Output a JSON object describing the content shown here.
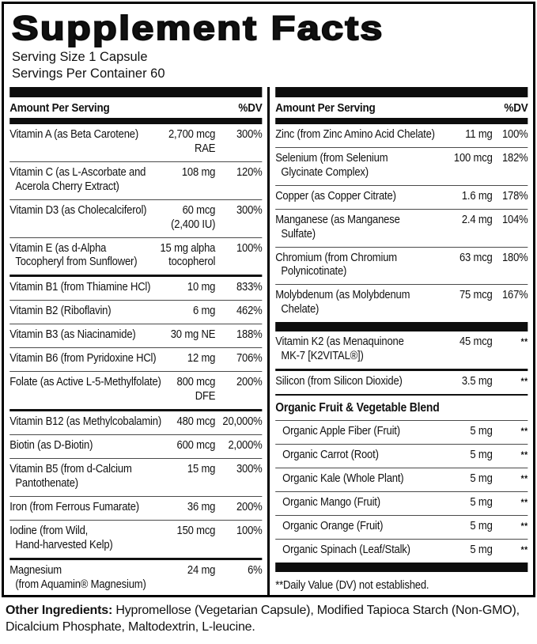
{
  "title": "Supplement Facts",
  "serving": {
    "size": "Serving Size 1 Capsule",
    "per_container": "Servings Per Container 60"
  },
  "table": {
    "header": {
      "amount": "Amount Per Serving",
      "dv": "%DV"
    },
    "left": [
      {
        "type": "row",
        "sep": "none",
        "name": "Vitamin A (as Beta Carotene)",
        "amount": "2,700 mcg\nRAE",
        "dv": "300%"
      },
      {
        "type": "row",
        "sep": "thin",
        "name": "Vitamin C (as L-Ascorbate and\nAcerola Cherry Extract)",
        "amount": "108 mg",
        "dv": "120%"
      },
      {
        "type": "row",
        "sep": "thin",
        "name": "Vitamin D3 (as Cholecalciferol)",
        "amount": "60 mcg\n(2,400 IU)",
        "dv": "300%"
      },
      {
        "type": "row",
        "sep": "thin",
        "name": "Vitamin E (as d-Alpha\nTocopheryl from Sunflower)",
        "amount": "15 mg alpha\ntocopherol",
        "dv": "100%"
      },
      {
        "type": "row",
        "sep": "medium",
        "name": "Vitamin B1 (from Thiamine HCl)",
        "amount": "10 mg",
        "dv": "833%"
      },
      {
        "type": "row",
        "sep": "thin",
        "name": "Vitamin B2 (Riboflavin)",
        "amount": "6 mg",
        "dv": "462%"
      },
      {
        "type": "row",
        "sep": "thin",
        "name": "Vitamin B3 (as Niacinamide)",
        "amount": "30 mg NE",
        "dv": "188%"
      },
      {
        "type": "row",
        "sep": "thin",
        "name": "Vitamin B6 (from Pyridoxine HCl)",
        "amount": "12 mg",
        "dv": "706%"
      },
      {
        "type": "row",
        "sep": "thin",
        "name": "Folate (as Active L-5-Methylfolate)",
        "amount": "800 mcg\nDFE",
        "dv": "200%"
      },
      {
        "type": "row",
        "sep": "medium",
        "name": "Vitamin B12 (as Methylcobalamin)",
        "amount": "480 mcg",
        "dv": "20,000%"
      },
      {
        "type": "row",
        "sep": "thin",
        "name": "Biotin (as D-Biotin)",
        "amount": "600 mcg",
        "dv": "2,000%"
      },
      {
        "type": "row",
        "sep": "thin",
        "name": "Vitamin B5 (from d-Calcium\nPantothenate)",
        "amount": "15 mg",
        "dv": "300%"
      },
      {
        "type": "row",
        "sep": "thin",
        "name": "Iron (from Ferrous Fumarate)",
        "amount": "36 mg",
        "dv": "200%"
      },
      {
        "type": "row",
        "sep": "thin",
        "name": "Iodine (from Wild,\nHand-harvested Kelp)",
        "amount": "150 mcg",
        "dv": "100%"
      },
      {
        "type": "row",
        "sep": "medium",
        "name": "Magnesium\n(from Aquamin® Magnesium)",
        "amount": "24 mg",
        "dv": "6%"
      }
    ],
    "right": [
      {
        "type": "row",
        "sep": "none",
        "name": "Zinc (from Zinc Amino Acid Chelate)",
        "amount": "11 mg",
        "dv": "100%"
      },
      {
        "type": "row",
        "sep": "thin",
        "name": "Selenium (from Selenium\nGlycinate Complex)",
        "amount": "100 mcg",
        "dv": "182%"
      },
      {
        "type": "row",
        "sep": "thin",
        "name": "Copper (as Copper Citrate)",
        "amount": "1.6 mg",
        "dv": "178%"
      },
      {
        "type": "row",
        "sep": "thin",
        "name": "Manganese (as Manganese\nSulfate)",
        "amount": "2.4 mg",
        "dv": "104%"
      },
      {
        "type": "row",
        "sep": "thin",
        "name": "Chromium (from Chromium\nPolynicotinate)",
        "amount": "63 mcg",
        "dv": "180%"
      },
      {
        "type": "row",
        "sep": "thin",
        "name": "Molybdenum (as Molybdenum\nChelate)",
        "amount": "75 mcg",
        "dv": "167%"
      },
      {
        "type": "bar"
      },
      {
        "type": "row",
        "sep": "none",
        "name": "Vitamin K2 (as Menaquinone\nMK-7 [K2VITAL®])",
        "amount": "45 mcg",
        "dv": "**"
      },
      {
        "type": "row",
        "sep": "medium",
        "name": "Silicon (from Silicon Dioxide)",
        "amount": "3.5 mg",
        "dv": "**"
      },
      {
        "type": "section",
        "label": "Organic Fruit & Vegetable Blend"
      },
      {
        "type": "row",
        "sep": "thin",
        "indent": true,
        "name": "Organic Apple Fiber (Fruit)",
        "amount": "5 mg",
        "dv": "**"
      },
      {
        "type": "row",
        "sep": "thin",
        "indent": true,
        "name": "Organic Carrot (Root)",
        "amount": "5 mg",
        "dv": "**"
      },
      {
        "type": "row",
        "sep": "thin",
        "indent": true,
        "name": "Organic Kale (Whole Plant)",
        "amount": "5 mg",
        "dv": "**"
      },
      {
        "type": "row",
        "sep": "thin",
        "indent": true,
        "name": "Organic Mango (Fruit)",
        "amount": "5 mg",
        "dv": "**"
      },
      {
        "type": "row",
        "sep": "thin",
        "indent": true,
        "name": "Organic Orange (Fruit)",
        "amount": "5 mg",
        "dv": "**"
      },
      {
        "type": "row",
        "sep": "thin",
        "indent": true,
        "name": "Organic Spinach (Leaf/Stalk)",
        "amount": "5 mg",
        "dv": "**"
      },
      {
        "type": "bar"
      },
      {
        "type": "note",
        "text": "**Daily Value (DV) not established."
      }
    ]
  },
  "other_ingredients": {
    "label": "Other Ingredients:",
    "text": "Hypromellose (Vegetarian Capsule), Modified Tapioca Starch (Non-GMO), Dicalcium Phosphate, Maltodextrin, L-leucine."
  }
}
